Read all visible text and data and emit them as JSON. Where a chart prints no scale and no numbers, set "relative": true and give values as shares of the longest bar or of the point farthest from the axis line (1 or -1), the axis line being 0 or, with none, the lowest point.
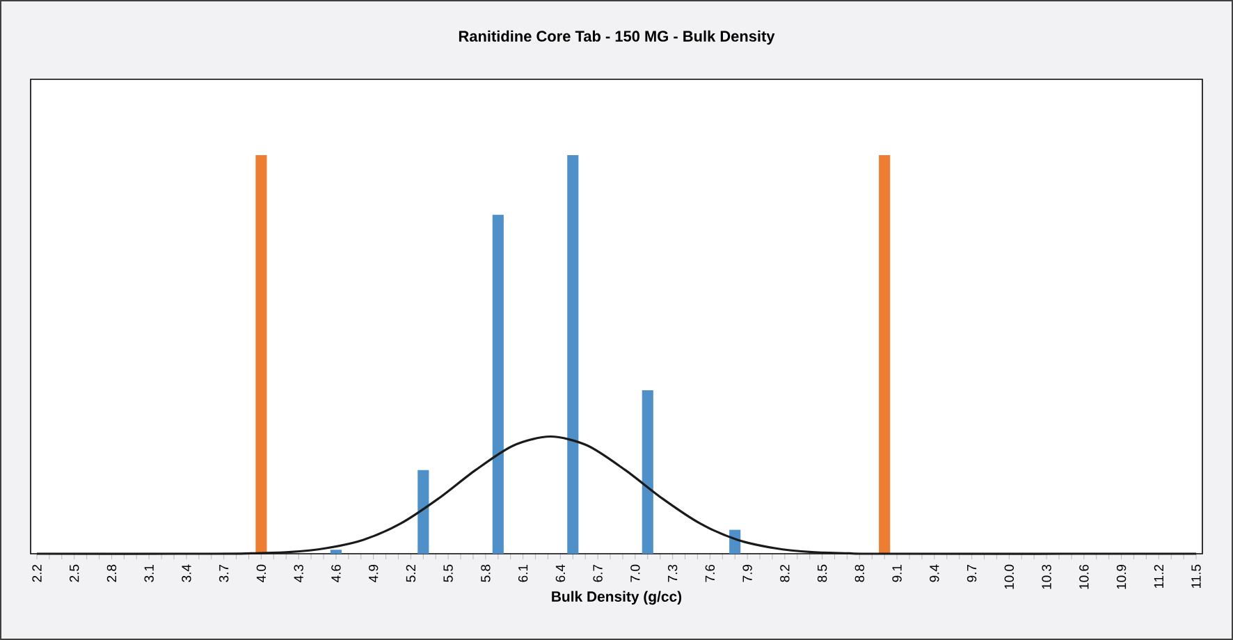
{
  "chart_data": {
    "type": "bar",
    "title": "Ranitidine Core Tab - 150 MG - Bulk Density",
    "xlabel": "Bulk Density (g/cc)",
    "relative": true,
    "xlim": [
      2.15,
      11.55
    ],
    "xticks": [
      2.2,
      {
        "value": 2.3,
        "label": null
      },
      {
        "value": 2.4,
        "label": null
      },
      2.5,
      {
        "value": 2.6,
        "label": null
      },
      {
        "value": 2.7,
        "label": null
      },
      2.8,
      {
        "value": 2.9,
        "label": null
      },
      {
        "value": 3.0,
        "label": null
      },
      3.1,
      {
        "value": 3.2,
        "label": null
      },
      {
        "value": 3.3,
        "label": null
      },
      3.4,
      {
        "value": 3.5,
        "label": null
      },
      {
        "value": 3.6,
        "label": null
      },
      3.7,
      {
        "value": 3.8,
        "label": null
      },
      {
        "value": 3.9,
        "label": null
      },
      {
        "value": 4,
        "label": "4.0"
      },
      {
        "value": 4.1,
        "label": null
      },
      {
        "value": 4.2,
        "label": null
      },
      4.3,
      {
        "value": 4.4,
        "label": null
      },
      {
        "value": 4.5,
        "label": null
      },
      4.6,
      {
        "value": 4.7,
        "label": null
      },
      {
        "value": 4.8,
        "label": null
      },
      4.9,
      {
        "value": 5.0,
        "label": null
      },
      {
        "value": 5.1,
        "label": null
      },
      5.2,
      {
        "value": 5.3,
        "label": null
      },
      {
        "value": 5.4,
        "label": null
      },
      5.5,
      {
        "value": 5.6,
        "label": null
      },
      {
        "value": 5.7,
        "label": null
      },
      5.8,
      {
        "value": 5.9,
        "label": null
      },
      {
        "value": 6.0,
        "label": null
      },
      6.1,
      {
        "value": 6.2,
        "label": null
      },
      {
        "value": 6.3,
        "label": null
      },
      6.4,
      {
        "value": 6.5,
        "label": null
      },
      {
        "value": 6.6,
        "label": null
      },
      6.7,
      {
        "value": 6.8,
        "label": null
      },
      {
        "value": 6.9,
        "label": null
      },
      {
        "value": 7,
        "label": "7.0"
      },
      {
        "value": 7.1,
        "label": null
      },
      {
        "value": 7.2,
        "label": null
      },
      7.3,
      {
        "value": 7.4,
        "label": null
      },
      {
        "value": 7.5,
        "label": null
      },
      7.6,
      {
        "value": 7.7,
        "label": null
      },
      {
        "value": 7.8,
        "label": null
      },
      7.9,
      {
        "value": 8.0,
        "label": null
      },
      {
        "value": 8.1,
        "label": null
      },
      8.2,
      {
        "value": 8.3,
        "label": null
      },
      {
        "value": 8.4,
        "label": null
      },
      8.5,
      {
        "value": 8.6,
        "label": null
      },
      {
        "value": 8.7,
        "label": null
      },
      8.8,
      {
        "value": 8.9,
        "label": null
      },
      {
        "value": 9.0,
        "label": null
      },
      9.1,
      {
        "value": 9.2,
        "label": null
      },
      {
        "value": 9.3,
        "label": null
      },
      9.4,
      {
        "value": 9.5,
        "label": null
      },
      {
        "value": 9.6,
        "label": null
      },
      9.7,
      {
        "value": 9.8,
        "label": null
      },
      {
        "value": 9.9,
        "label": null
      },
      {
        "value": 10,
        "label": "10.0"
      },
      {
        "value": 10.1,
        "label": null
      },
      {
        "value": 10.2,
        "label": null
      },
      10.3,
      {
        "value": 10.4,
        "label": null
      },
      {
        "value": 10.5,
        "label": null
      },
      10.6,
      {
        "value": 10.7,
        "label": null
      },
      {
        "value": 10.8,
        "label": null
      },
      10.9,
      {
        "value": 11.0,
        "label": null
      },
      {
        "value": 11.1,
        "label": null
      },
      11.2,
      {
        "value": 11.3,
        "label": null
      },
      {
        "value": 11.4,
        "label": null
      },
      11.5
    ],
    "series": [
      {
        "color": "#4f90c8",
        "x": [
          4.6,
          5.3,
          5.9,
          6.5,
          7.1,
          7.8
        ],
        "values": [
          0.01,
          0.21,
          0.85,
          1,
          0.41,
          0.06
        ]
      },
      {
        "color": "#ed7d31",
        "x": [
          4.0,
          9.0
        ],
        "values": [
          1,
          1
        ]
      },
      {
        "type": "line",
        "color": "#1a1a1a",
        "x": [
          2.2,
          3.62,
          3.92,
          4.22,
          4.52,
          4.82,
          5.12,
          5.42,
          5.72,
          6.02,
          6.32,
          6.62,
          6.92,
          7.22,
          7.52,
          7.82,
          8.12,
          8.42,
          8.72,
          9.02,
          11.5
        ],
        "values": [
          0,
          0,
          0.001,
          0.004,
          0.014,
          0.035,
          0.076,
          0.138,
          0.21,
          0.271,
          0.294,
          0.271,
          0.21,
          0.138,
          0.076,
          0.035,
          0.014,
          0.004,
          0.001,
          0,
          0
        ]
      }
    ]
  }
}
